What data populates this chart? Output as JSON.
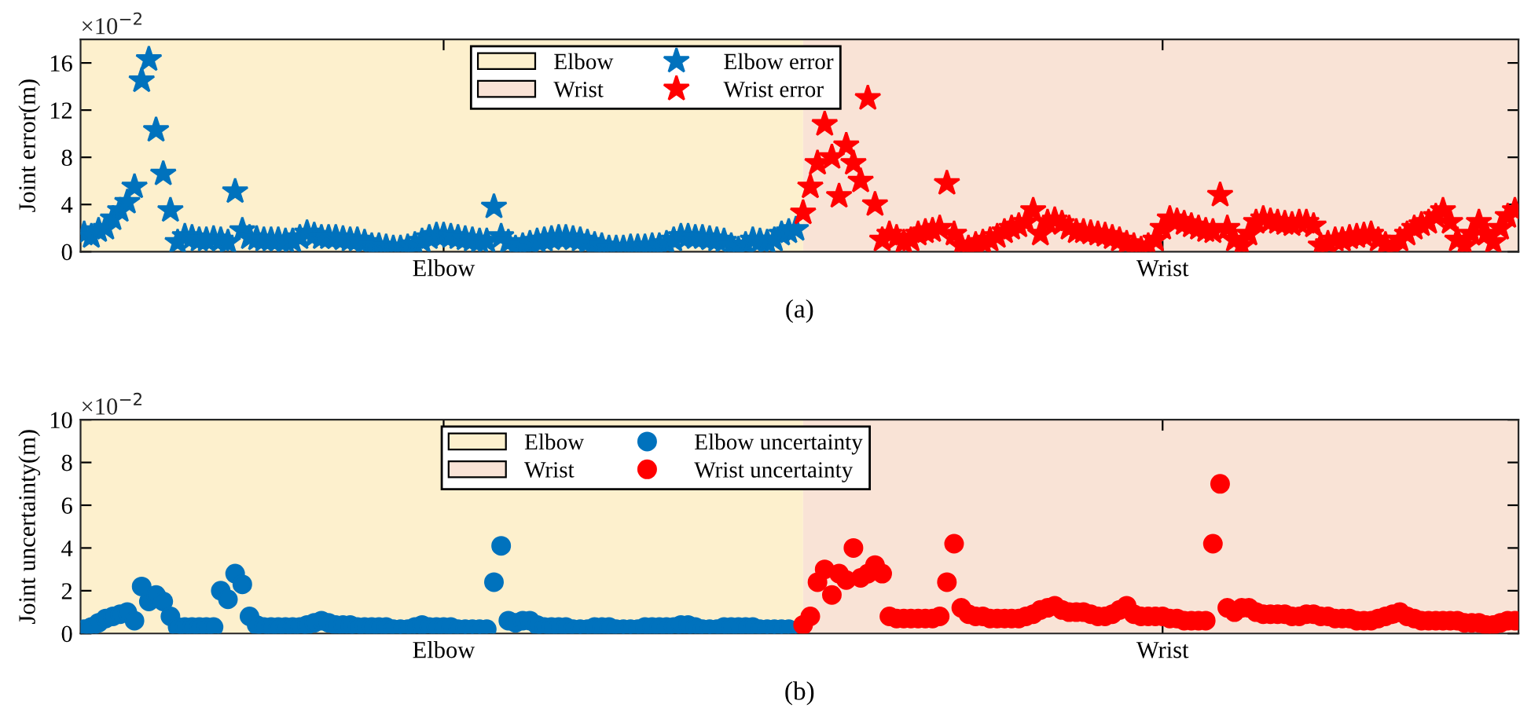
{
  "chart_data": [
    {
      "type": "scatter",
      "ylabel": "Joint error(m)",
      "annotations": [
        "×10$^{−2}$",
        "(a)"
      ],
      "marker": "star",
      "legend": "top",
      "grid": false,
      "categories": [
        null,
        null,
        null,
        null,
        null,
        null,
        null,
        null,
        null,
        null,
        null,
        null,
        null,
        null,
        null,
        null,
        null,
        null,
        null,
        null,
        null,
        null,
        null,
        null,
        null,
        null,
        null,
        null,
        null,
        null,
        null,
        null,
        null,
        null,
        null,
        null,
        null,
        null,
        null,
        null,
        null,
        null,
        null,
        null,
        null,
        null,
        null,
        null,
        null,
        null,
        "Elbow",
        null,
        null,
        null,
        null,
        null,
        null,
        null,
        null,
        null,
        null,
        null,
        null,
        null,
        null,
        null,
        null,
        null,
        null,
        null,
        null,
        null,
        null,
        null,
        null,
        null,
        null,
        null,
        null,
        null,
        null,
        null,
        null,
        null,
        null,
        null,
        null,
        null,
        null,
        null,
        null,
        null,
        null,
        null,
        null,
        null,
        null,
        null,
        null,
        null,
        null,
        null,
        null,
        null,
        null,
        null,
        null,
        null,
        null,
        null,
        null,
        null,
        null,
        null,
        null,
        null,
        null,
        null,
        null,
        null,
        null,
        null,
        null,
        null,
        null,
        null,
        null,
        null,
        null,
        null,
        null,
        null,
        null,
        null,
        null,
        null,
        null,
        null,
        null,
        null,
        null,
        null,
        null,
        null,
        null,
        null,
        null,
        null,
        null,
        null,
        "Wrist",
        null,
        null,
        null,
        null,
        null,
        null,
        null,
        null,
        null,
        null,
        null,
        null,
        null,
        null,
        null,
        null,
        null,
        null,
        null,
        null,
        null,
        null,
        null,
        null,
        null,
        null,
        null,
        null,
        null,
        null,
        null,
        null,
        null,
        null,
        null,
        null,
        null,
        null,
        null,
        null,
        null,
        null,
        null,
        null,
        null,
        null,
        null,
        null,
        null
      ],
      "ylim": [
        0,
        18
      ],
      "yticks": [
        0,
        4,
        8,
        12,
        16
      ],
      "series": [
        {
          "name": "Elbow error",
          "color": "#0072bd",
          "values": [
            1.5,
            1.3,
            1.8,
            2.0,
            2.8,
            3.5,
            4.2,
            5.5,
            14.5,
            16.3,
            10.3,
            6.6,
            3.5,
            0.8,
            1.3,
            1.2,
            1.0,
            1.0,
            1.1,
            1.0,
            0.8,
            5.1,
            1.8,
            1.2,
            1.1,
            1.0,
            1.0,
            1.0,
            0.9,
            0.9,
            1.2,
            1.6,
            1.4,
            1.2,
            1.2,
            1.2,
            1.1,
            1.0,
            1.0,
            0.8,
            0.5,
            0.5,
            0.4,
            0.3,
            0.3,
            0.4,
            0.6,
            0.9,
            1.2,
            1.4,
            1.4,
            1.3,
            1.2,
            1.1,
            1.0,
            0.9,
            0.9,
            3.8,
            1.3,
            0.8,
            0.3,
            0.5,
            0.7,
            0.9,
            1.0,
            1.1,
            1.2,
            1.2,
            1.1,
            1.0,
            0.8,
            0.6,
            0.5,
            0.3,
            0.3,
            0.3,
            0.4,
            0.4,
            0.4,
            0.5,
            0.5,
            0.7,
            1.0,
            1.3,
            1.3,
            1.2,
            1.2,
            1.1,
            1.0,
            0.9,
            0.5,
            0.2,
            0.6,
            1.0,
            0.9,
            0.8,
            1.0,
            1.5,
            1.7,
            1.9,
            null,
            null,
            null,
            null,
            null,
            null,
            null,
            null,
            null,
            null,
            null,
            null,
            null,
            null,
            null,
            null,
            null,
            null,
            null,
            null,
            null,
            null,
            null,
            null,
            null,
            null,
            null,
            null,
            null,
            null,
            null,
            null,
            null,
            null,
            null,
            null,
            null,
            null,
            null,
            null,
            null,
            null,
            null,
            null,
            null,
            null,
            null,
            null,
            null,
            null,
            null,
            null,
            null,
            null,
            null,
            null,
            null,
            null,
            null,
            null,
            null,
            null,
            null,
            null,
            null,
            null,
            null,
            null,
            null,
            null,
            null,
            null,
            null,
            null,
            null,
            null,
            null,
            null,
            null,
            null,
            null,
            null,
            null,
            null,
            null,
            null,
            null,
            null,
            null,
            null,
            null,
            null,
            null,
            null,
            null,
            null,
            null,
            null,
            null,
            null
          ]
        },
        {
          "name": "Wrist error",
          "color": "#ff0000",
          "values": [
            null,
            null,
            null,
            null,
            null,
            null,
            null,
            null,
            null,
            null,
            null,
            null,
            null,
            null,
            null,
            null,
            null,
            null,
            null,
            null,
            null,
            null,
            null,
            null,
            null,
            null,
            null,
            null,
            null,
            null,
            null,
            null,
            null,
            null,
            null,
            null,
            null,
            null,
            null,
            null,
            null,
            null,
            null,
            null,
            null,
            null,
            null,
            null,
            null,
            null,
            null,
            null,
            null,
            null,
            null,
            null,
            null,
            null,
            null,
            null,
            null,
            null,
            null,
            null,
            null,
            null,
            null,
            null,
            null,
            null,
            null,
            null,
            null,
            null,
            null,
            null,
            null,
            null,
            null,
            null,
            null,
            null,
            null,
            null,
            null,
            null,
            null,
            null,
            null,
            null,
            null,
            null,
            null,
            null,
            null,
            null,
            null,
            null,
            null,
            null,
            3.3,
            5.5,
            7.5,
            10.8,
            8.0,
            4.7,
            9.0,
            7.5,
            6.0,
            13.0,
            4.0,
            1.0,
            1.5,
            1.2,
            0.8,
            1.0,
            1.5,
            1.7,
            1.8,
            2.0,
            5.8,
            1.5,
            0.5,
            0.3,
            0.6,
            0.8,
            1.0,
            1.3,
            1.7,
            2.0,
            2.2,
            2.5,
            3.5,
            1.5,
            2.5,
            2.7,
            2.4,
            2.0,
            1.7,
            1.7,
            1.6,
            1.5,
            1.4,
            1.2,
            1.0,
            0.7,
            0.5,
            0.2,
            0.5,
            1.0,
            2.0,
            2.8,
            2.6,
            2.4,
            2.2,
            2.0,
            1.8,
            1.7,
            4.8,
            2.0,
            1.0,
            0.5,
            1.5,
            2.5,
            2.8,
            2.6,
            2.5,
            2.4,
            2.3,
            2.5,
            2.5,
            2.2,
            0.5,
            0.7,
            1.0,
            1.0,
            1.2,
            1.3,
            1.4,
            1.5,
            1.0,
            0.6,
            0.2,
            1.0,
            1.5,
            2.0,
            2.3,
            2.5,
            3.0,
            3.5,
            2.5,
            1.0,
            0.5,
            1.5,
            2.5,
            1.5,
            0.8,
            2.0,
            3.0,
            3.5
          ]
        }
      ]
    },
    {
      "type": "scatter",
      "ylabel": "Joint uncertainty(m)",
      "annotations": [
        "×10$^{−2}$",
        "(b)"
      ],
      "marker": "circle",
      "legend": "top",
      "grid": false,
      "categories": [
        null,
        null,
        null,
        null,
        null,
        null,
        null,
        null,
        null,
        null,
        null,
        null,
        null,
        null,
        null,
        null,
        null,
        null,
        null,
        null,
        null,
        null,
        null,
        null,
        null,
        null,
        null,
        null,
        null,
        null,
        null,
        null,
        null,
        null,
        null,
        null,
        null,
        null,
        null,
        null,
        null,
        null,
        null,
        null,
        null,
        null,
        null,
        null,
        null,
        null,
        "Elbow",
        null,
        null,
        null,
        null,
        null,
        null,
        null,
        null,
        null,
        null,
        null,
        null,
        null,
        null,
        null,
        null,
        null,
        null,
        null,
        null,
        null,
        null,
        null,
        null,
        null,
        null,
        null,
        null,
        null,
        null,
        null,
        null,
        null,
        null,
        null,
        null,
        null,
        null,
        null,
        null,
        null,
        null,
        null,
        null,
        null,
        null,
        null,
        null,
        null,
        null,
        null,
        null,
        null,
        null,
        null,
        null,
        null,
        null,
        null,
        null,
        null,
        null,
        null,
        null,
        null,
        null,
        null,
        null,
        null,
        null,
        null,
        null,
        null,
        null,
        null,
        null,
        null,
        null,
        null,
        null,
        null,
        null,
        null,
        null,
        null,
        null,
        null,
        null,
        null,
        null,
        null,
        null,
        null,
        null,
        null,
        null,
        null,
        null,
        null,
        "Wrist",
        null,
        null,
        null,
        null,
        null,
        null,
        null,
        null,
        null,
        null,
        null,
        null,
        null,
        null,
        null,
        null,
        null,
        null,
        null,
        null,
        null,
        null,
        null,
        null,
        null,
        null,
        null,
        null,
        null,
        null,
        null,
        null,
        null,
        null,
        null,
        null,
        null,
        null,
        null,
        null,
        null,
        null,
        null,
        null,
        null,
        null,
        null,
        null,
        null
      ],
      "ylim": [
        0,
        10
      ],
      "yticks": [
        0,
        2,
        4,
        6,
        8,
        10
      ],
      "series": [
        {
          "name": "Elbow uncertainty",
          "color": "#0072bd",
          "values": [
            0.2,
            0.3,
            0.5,
            0.7,
            0.8,
            0.9,
            1.0,
            0.6,
            2.2,
            1.5,
            1.8,
            1.5,
            0.8,
            0.3,
            0.3,
            0.3,
            0.3,
            0.3,
            0.3,
            2.0,
            1.6,
            2.8,
            2.3,
            0.8,
            0.4,
            0.3,
            0.3,
            0.3,
            0.3,
            0.3,
            0.3,
            0.4,
            0.5,
            0.6,
            0.5,
            0.4,
            0.4,
            0.4,
            0.3,
            0.3,
            0.3,
            0.3,
            0.3,
            0.2,
            0.2,
            0.2,
            0.3,
            0.4,
            0.3,
            0.3,
            0.3,
            0.3,
            0.2,
            0.2,
            0.2,
            0.2,
            0.2,
            2.4,
            4.1,
            0.6,
            0.5,
            0.6,
            0.6,
            0.4,
            0.3,
            0.3,
            0.3,
            0.3,
            0.2,
            0.2,
            0.2,
            0.3,
            0.3,
            0.3,
            0.2,
            0.2,
            0.2,
            0.2,
            0.3,
            0.3,
            0.3,
            0.3,
            0.3,
            0.4,
            0.4,
            0.3,
            0.2,
            0.2,
            0.2,
            0.3,
            0.3,
            0.3,
            0.3,
            0.3,
            0.2,
            0.2,
            0.2,
            0.2,
            0.2,
            null,
            null,
            null,
            null,
            null,
            null,
            null,
            null,
            null,
            null,
            null,
            null,
            null,
            null,
            null,
            null,
            null,
            null,
            null,
            null,
            null,
            null,
            null,
            null,
            null,
            null,
            null,
            null,
            null,
            null,
            null,
            null,
            null,
            null,
            null,
            null,
            null,
            null,
            null,
            null,
            null,
            null,
            null,
            null,
            null,
            null,
            null,
            null,
            null,
            null,
            null,
            null,
            null,
            null,
            null,
            null,
            null,
            null,
            null,
            null,
            null,
            null,
            null,
            null,
            null,
            null,
            null,
            null,
            null,
            null,
            null,
            null,
            null,
            null,
            null,
            null,
            null,
            null,
            null,
            null,
            null,
            null,
            null,
            null,
            null,
            null,
            null,
            null,
            null,
            null,
            null,
            null,
            null,
            null,
            null,
            null,
            null,
            null,
            null,
            null,
            null
          ]
        },
        {
          "name": "Wrist uncertainty",
          "color": "#ff0000",
          "values": [
            null,
            null,
            null,
            null,
            null,
            null,
            null,
            null,
            null,
            null,
            null,
            null,
            null,
            null,
            null,
            null,
            null,
            null,
            null,
            null,
            null,
            null,
            null,
            null,
            null,
            null,
            null,
            null,
            null,
            null,
            null,
            null,
            null,
            null,
            null,
            null,
            null,
            null,
            null,
            null,
            null,
            null,
            null,
            null,
            null,
            null,
            null,
            null,
            null,
            null,
            null,
            null,
            null,
            null,
            null,
            null,
            null,
            null,
            null,
            null,
            null,
            null,
            null,
            null,
            null,
            null,
            null,
            null,
            null,
            null,
            null,
            null,
            null,
            null,
            null,
            null,
            null,
            null,
            null,
            null,
            null,
            null,
            null,
            null,
            null,
            null,
            null,
            null,
            null,
            null,
            null,
            null,
            null,
            null,
            null,
            null,
            null,
            null,
            null,
            null,
            0.4,
            0.8,
            2.4,
            3.0,
            1.8,
            2.8,
            2.5,
            4.0,
            2.6,
            2.8,
            3.2,
            2.8,
            0.8,
            0.7,
            0.7,
            0.7,
            0.7,
            0.7,
            0.7,
            0.8,
            2.4,
            4.2,
            1.2,
            0.9,
            0.8,
            0.8,
            0.7,
            0.7,
            0.7,
            0.7,
            0.7,
            0.8,
            0.9,
            1.1,
            1.2,
            1.3,
            1.1,
            1.0,
            1.0,
            1.0,
            0.9,
            0.8,
            0.8,
            0.9,
            1.1,
            1.3,
            0.9,
            0.8,
            0.8,
            0.8,
            0.8,
            0.7,
            0.7,
            0.6,
            0.6,
            0.6,
            0.6,
            4.2,
            7.0,
            1.2,
            1.0,
            1.2,
            1.2,
            1.0,
            0.9,
            0.9,
            0.9,
            0.9,
            0.8,
            0.8,
            0.9,
            0.9,
            0.8,
            0.8,
            0.7,
            0.7,
            0.7,
            0.6,
            0.6,
            0.6,
            0.7,
            0.8,
            0.9,
            1.0,
            0.8,
            0.7,
            0.6,
            0.6,
            0.6,
            0.6,
            0.6,
            0.6,
            0.5,
            0.5,
            0.5,
            0.4,
            0.4,
            0.5,
            0.6,
            0.6
          ]
        }
      ]
    }
  ]
}
